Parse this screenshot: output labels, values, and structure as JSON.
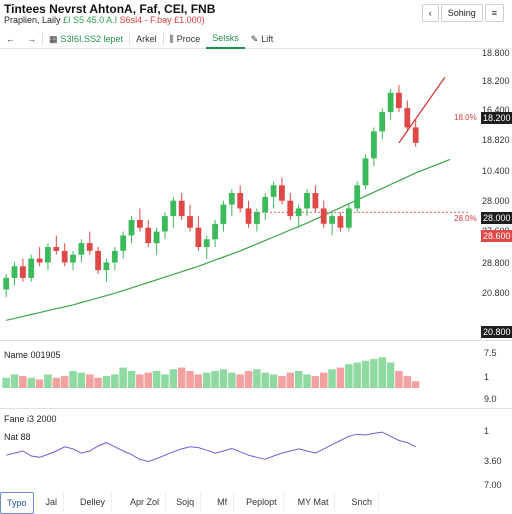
{
  "header": {
    "title": "Tintees Nevrst AhtonA, Faf, CEI, FNB",
    "subtitle_prefix": "Praplien, Laily",
    "subtitle_values": "£I S5 45.0 A.I",
    "subtitle_change": "S6sl4 - F.bay £1.000)",
    "top_controls": [
      "‹",
      "Sohing",
      "≡"
    ]
  },
  "toolbar": {
    "back": "←",
    "forward": "→",
    "symbol_value": "S3I6I.SS2 lepet",
    "items": [
      "Arkel",
      "Proce",
      "Selsks",
      "Lift"
    ],
    "active_index": 2
  },
  "price_axis": [
    "18.800",
    "18.200",
    "16.400",
    "18.820",
    "10.400",
    "28.000",
    "27.600",
    "28.800",
    "20.800"
  ],
  "price_labels": {
    "top_dark": "18.200",
    "last_dark": "18.600",
    "red_text_top": "18.0%",
    "mid_red_text": "28.0%",
    "dark_mid": "28.000",
    "red_box": "28.600",
    "bottom_dark": "20.800"
  },
  "volume_panel": {
    "title": "Name 001905",
    "axis": [
      "7.5",
      "1",
      "9.0"
    ]
  },
  "osc_panel": {
    "title": "Fane i3 2000",
    "subtitle": "Nat 88",
    "axis": [
      "1",
      "3.60",
      "7.00"
    ]
  },
  "x_axis": [
    "Typo",
    "Jal",
    "Delley",
    "Apr Zol",
    "Sojq",
    "Mf",
    "Peplopt",
    "MY Mat",
    "Snch"
  ],
  "colors": {
    "up": "#3cb95a",
    "down": "#e04848",
    "ma": "#3aa64b",
    "trend": "#d83a3a",
    "osc": "#7a5bd6"
  },
  "chart_data": {
    "type": "candlestick",
    "series": [
      {
        "o": 3.0,
        "h": 3.4,
        "l": 2.8,
        "c": 3.3
      },
      {
        "o": 3.3,
        "h": 3.7,
        "l": 3.1,
        "c": 3.6
      },
      {
        "o": 3.6,
        "h": 3.8,
        "l": 3.2,
        "c": 3.3
      },
      {
        "o": 3.3,
        "h": 3.9,
        "l": 3.2,
        "c": 3.8
      },
      {
        "o": 3.8,
        "h": 4.1,
        "l": 3.6,
        "c": 3.7
      },
      {
        "o": 3.7,
        "h": 4.2,
        "l": 3.5,
        "c": 4.1
      },
      {
        "o": 4.1,
        "h": 4.4,
        "l": 3.9,
        "c": 4.0
      },
      {
        "o": 4.0,
        "h": 4.2,
        "l": 3.6,
        "c": 3.7
      },
      {
        "o": 3.7,
        "h": 4.0,
        "l": 3.5,
        "c": 3.9
      },
      {
        "o": 3.9,
        "h": 4.3,
        "l": 3.7,
        "c": 4.2
      },
      {
        "o": 4.2,
        "h": 4.5,
        "l": 3.9,
        "c": 4.0
      },
      {
        "o": 4.0,
        "h": 4.1,
        "l": 3.4,
        "c": 3.5
      },
      {
        "o": 3.5,
        "h": 3.8,
        "l": 3.2,
        "c": 3.7
      },
      {
        "o": 3.7,
        "h": 4.1,
        "l": 3.5,
        "c": 4.0
      },
      {
        "o": 4.0,
        "h": 4.5,
        "l": 3.8,
        "c": 4.4
      },
      {
        "o": 4.4,
        "h": 4.9,
        "l": 4.2,
        "c": 4.8
      },
      {
        "o": 4.8,
        "h": 5.1,
        "l": 4.5,
        "c": 4.6
      },
      {
        "o": 4.6,
        "h": 4.8,
        "l": 4.1,
        "c": 4.2
      },
      {
        "o": 4.2,
        "h": 4.6,
        "l": 3.9,
        "c": 4.5
      },
      {
        "o": 4.5,
        "h": 5.0,
        "l": 4.3,
        "c": 4.9
      },
      {
        "o": 4.9,
        "h": 5.4,
        "l": 4.6,
        "c": 5.3
      },
      {
        "o": 5.3,
        "h": 5.5,
        "l": 4.8,
        "c": 4.9
      },
      {
        "o": 4.9,
        "h": 5.2,
        "l": 4.5,
        "c": 4.6
      },
      {
        "o": 4.6,
        "h": 4.9,
        "l": 4.0,
        "c": 4.1
      },
      {
        "o": 4.1,
        "h": 4.4,
        "l": 3.8,
        "c": 4.3
      },
      {
        "o": 4.3,
        "h": 4.8,
        "l": 4.1,
        "c": 4.7
      },
      {
        "o": 4.7,
        "h": 5.3,
        "l": 4.5,
        "c": 5.2
      },
      {
        "o": 5.2,
        "h": 5.6,
        "l": 4.9,
        "c": 5.5
      },
      {
        "o": 5.5,
        "h": 5.7,
        "l": 5.0,
        "c": 5.1
      },
      {
        "o": 5.1,
        "h": 5.3,
        "l": 4.6,
        "c": 4.7
      },
      {
        "o": 4.7,
        "h": 5.1,
        "l": 4.5,
        "c": 5.0
      },
      {
        "o": 5.0,
        "h": 5.5,
        "l": 4.8,
        "c": 5.4
      },
      {
        "o": 5.4,
        "h": 5.8,
        "l": 5.1,
        "c": 5.7
      },
      {
        "o": 5.7,
        "h": 5.9,
        "l": 5.2,
        "c": 5.3
      },
      {
        "o": 5.3,
        "h": 5.5,
        "l": 4.8,
        "c": 4.9
      },
      {
        "o": 4.9,
        "h": 5.2,
        "l": 4.6,
        "c": 5.1
      },
      {
        "o": 5.1,
        "h": 5.6,
        "l": 4.9,
        "c": 5.5
      },
      {
        "o": 5.5,
        "h": 5.7,
        "l": 5.0,
        "c": 5.1
      },
      {
        "o": 5.1,
        "h": 5.3,
        "l": 4.6,
        "c": 4.7
      },
      {
        "o": 4.7,
        "h": 5.0,
        "l": 4.4,
        "c": 4.9
      },
      {
        "o": 4.9,
        "h": 5.0,
        "l": 4.5,
        "c": 4.6
      },
      {
        "o": 4.6,
        "h": 5.2,
        "l": 4.5,
        "c": 5.1
      },
      {
        "o": 5.1,
        "h": 5.8,
        "l": 5.0,
        "c": 5.7
      },
      {
        "o": 5.7,
        "h": 6.5,
        "l": 5.6,
        "c": 6.4
      },
      {
        "o": 6.4,
        "h": 7.2,
        "l": 6.2,
        "c": 7.1
      },
      {
        "o": 7.1,
        "h": 7.7,
        "l": 6.9,
        "c": 7.6
      },
      {
        "o": 7.6,
        "h": 8.2,
        "l": 7.4,
        "c": 8.1
      },
      {
        "o": 8.1,
        "h": 8.3,
        "l": 7.6,
        "c": 7.7
      },
      {
        "o": 7.7,
        "h": 7.9,
        "l": 7.1,
        "c": 7.2
      },
      {
        "o": 7.2,
        "h": 7.4,
        "l": 6.7,
        "c": 6.8
      }
    ],
    "ma": [
      2.2,
      2.25,
      2.3,
      2.35,
      2.4,
      2.45,
      2.5,
      2.55,
      2.6,
      2.66,
      2.72,
      2.78,
      2.84,
      2.9,
      2.97,
      3.04,
      3.11,
      3.18,
      3.25,
      3.32,
      3.39,
      3.46,
      3.53,
      3.6,
      3.68,
      3.76,
      3.84,
      3.92,
      4.0,
      4.09,
      4.18,
      4.27,
      4.36,
      4.45,
      4.54,
      4.63,
      4.72,
      4.82,
      4.92,
      5.02,
      5.12,
      5.22,
      5.32,
      5.42,
      5.52,
      5.62,
      5.72,
      5.82,
      5.92,
      6.02
    ],
    "volume": [
      0.3,
      0.4,
      0.35,
      0.3,
      0.25,
      0.4,
      0.3,
      0.35,
      0.5,
      0.45,
      0.4,
      0.3,
      0.35,
      0.4,
      0.6,
      0.5,
      0.4,
      0.45,
      0.5,
      0.4,
      0.55,
      0.6,
      0.5,
      0.4,
      0.45,
      0.5,
      0.55,
      0.45,
      0.4,
      0.5,
      0.55,
      0.45,
      0.4,
      0.35,
      0.45,
      0.5,
      0.4,
      0.35,
      0.45,
      0.55,
      0.6,
      0.7,
      0.75,
      0.8,
      0.85,
      0.9,
      0.75,
      0.5,
      0.35,
      0.2
    ],
    "osc": [
      0.4,
      0.45,
      0.5,
      0.38,
      0.35,
      0.42,
      0.5,
      0.6,
      0.55,
      0.45,
      0.5,
      0.62,
      0.7,
      0.6,
      0.5,
      0.42,
      0.3,
      0.25,
      0.32,
      0.4,
      0.48,
      0.55,
      0.6,
      0.58,
      0.52,
      0.45,
      0.5,
      0.56,
      0.48,
      0.4,
      0.35,
      0.3,
      0.38,
      0.45,
      0.5,
      0.55,
      0.5,
      0.45,
      0.55,
      0.65,
      0.75,
      0.85,
      0.9,
      0.88,
      0.92,
      0.95,
      0.85,
      0.75,
      0.7,
      0.6
    ],
    "trend_line": {
      "x": [
        47,
        49.5
      ],
      "y": [
        6.8,
        8.5
      ]
    },
    "support_level": 5.0,
    "ylim": [
      2,
      9
    ]
  }
}
